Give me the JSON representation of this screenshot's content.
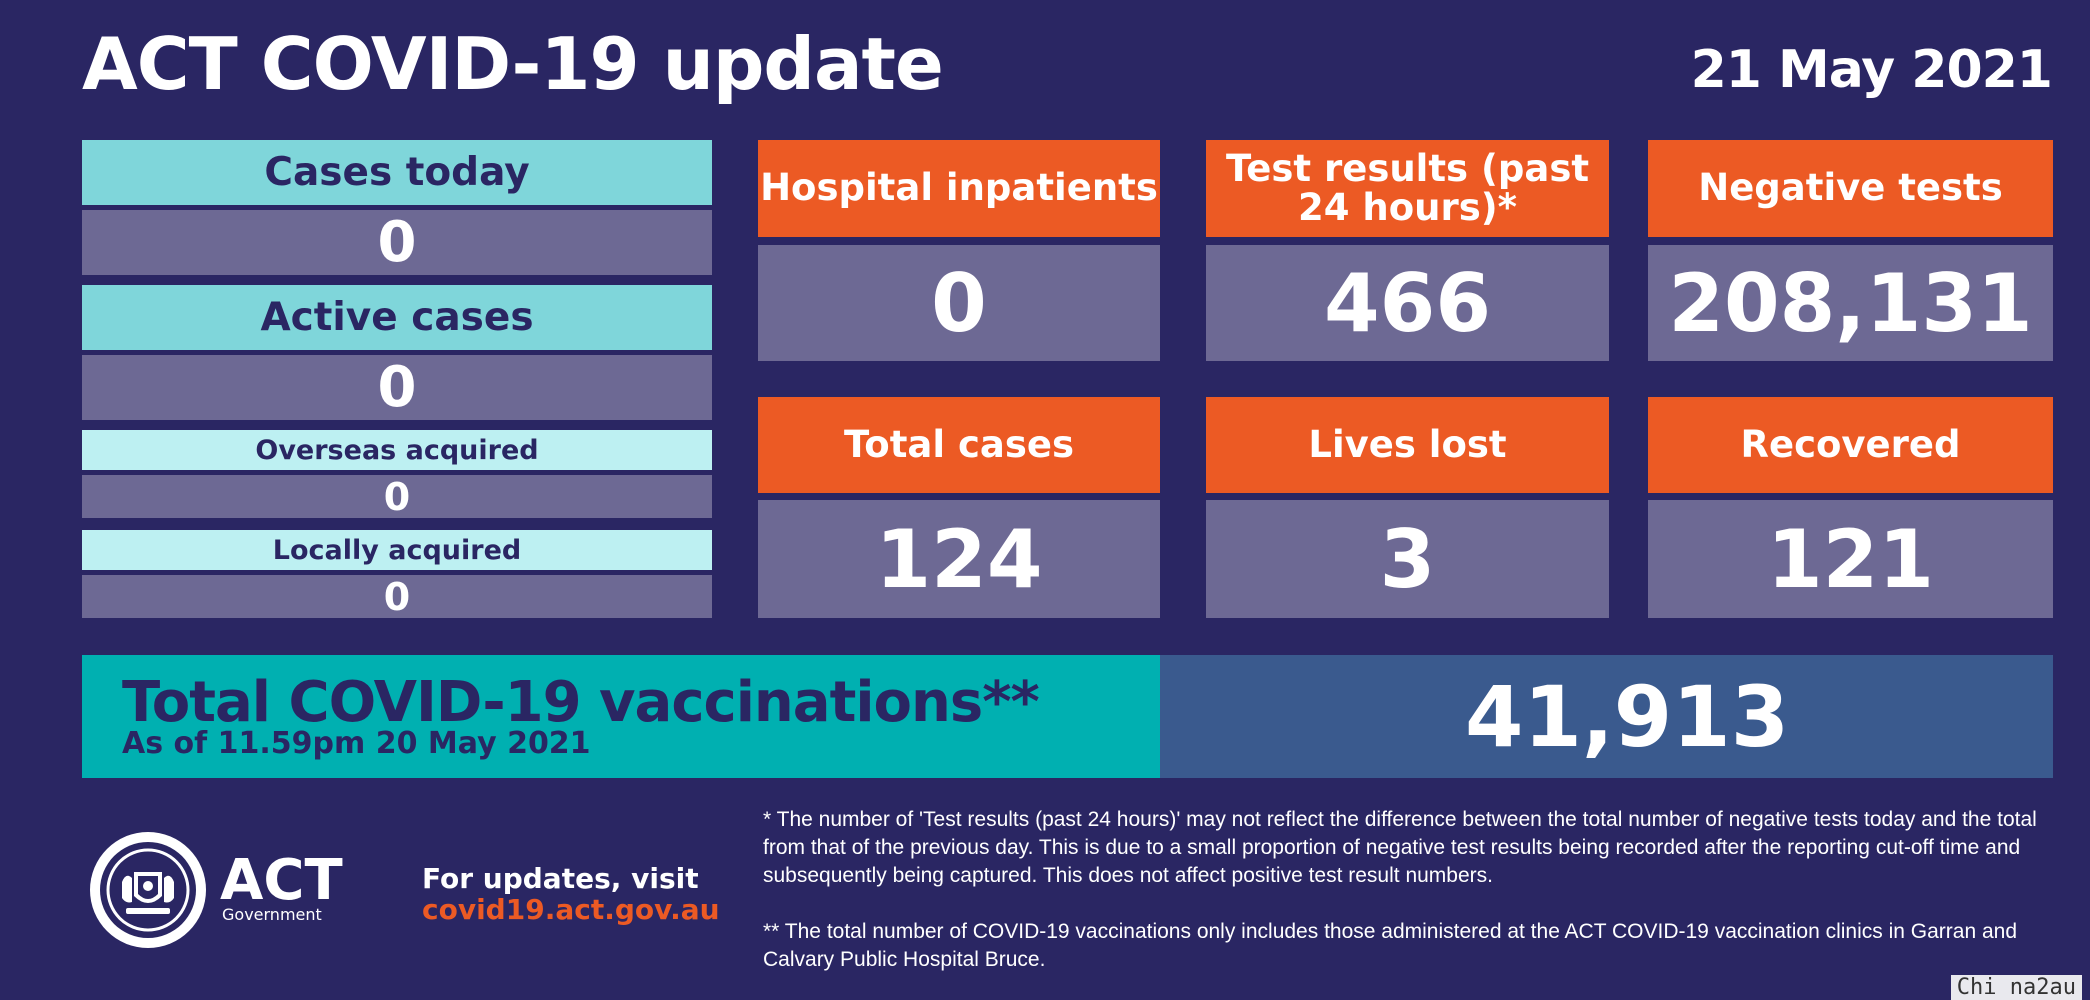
{
  "header": {
    "title": "ACT COVID-19 update",
    "date": "21 May 2021"
  },
  "left_panel": {
    "cases_today_label": "Cases today",
    "cases_today_value": "0",
    "active_cases_label": "Active cases",
    "active_cases_value": "0",
    "overseas_label": "Overseas acquired",
    "overseas_value": "0",
    "locally_label": "Locally acquired",
    "locally_value": "0"
  },
  "tiles": [
    {
      "label": "Hospital inpatients",
      "value": "0"
    },
    {
      "label": "Test results (past 24 hours)*",
      "value": "466"
    },
    {
      "label": "Negative tests",
      "value": "208,131"
    },
    {
      "label": "Total cases",
      "value": "124"
    },
    {
      "label": "Lives lost",
      "value": "3"
    },
    {
      "label": "Recovered",
      "value": "121"
    }
  ],
  "vaccinations": {
    "title": "Total COVID-19 vaccinations**",
    "subtitle": "As of 11.59pm 20 May 2021",
    "value": "41,913"
  },
  "footer": {
    "logo_text": "ACT",
    "logo_subtext": "Government",
    "updates_line1": "For updates, visit",
    "updates_link": "covid19.act.gov.au",
    "note1": "* The number of 'Test results (past 24 hours)' may not reflect the difference between the total number of negative tests today and the total from that of the previous day. This is due to a small proportion of negative test results being recorded after the reporting cut-off time and subsequently being captured. This does not affect positive test result numbers.",
    "note2": "** The total number of COVID-19 vaccinations only includes those administered at the ACT COVID-19 vaccination clinics in Garran and Calvary Public Hospital Bruce."
  },
  "watermark": "Chi na2au",
  "colors": {
    "background": "#2a2663",
    "orange": "#ec5a24",
    "cyan": "#7fd6da",
    "grey_value": "#6d6994",
    "teal": "#00b0b1",
    "blue_value": "#3a5a8e"
  }
}
